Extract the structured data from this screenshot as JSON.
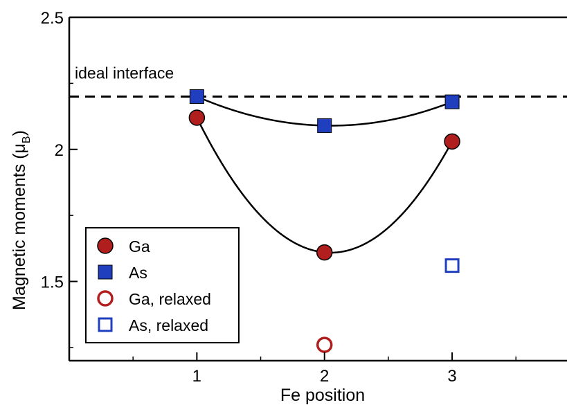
{
  "chart_data": {
    "type": "scatter",
    "xlabel": "Fe position",
    "ylabel": "Magnetic moments (μB)",
    "ylabel_main": "Magnetic moments (μ",
    "ylabel_sub": "B",
    "ylabel_close": ")",
    "xlim": [
      0.0,
      3.9
    ],
    "ylim": [
      1.2,
      2.5
    ],
    "x_ticks": [
      1,
      2,
      3
    ],
    "x_tick_labels": [
      "1",
      "2",
      "3"
    ],
    "y_ticks": [
      1.5,
      2.0,
      2.5
    ],
    "y_tick_labels": [
      "1.5",
      "2",
      "2.5"
    ],
    "grid": false,
    "legend_position": "bottom-left",
    "reference_line": {
      "y": 2.2,
      "label": "ideal interface",
      "style": "dashed"
    },
    "series": [
      {
        "name": "Ga",
        "marker": "circle",
        "filled": true,
        "color": "#b01e1e",
        "x": [
          1,
          2,
          3
        ],
        "y": [
          2.12,
          1.61,
          2.03
        ],
        "fit_curve": true
      },
      {
        "name": "As",
        "marker": "square",
        "filled": true,
        "color": "#1f3fbf",
        "x": [
          1,
          2,
          3
        ],
        "y": [
          2.2,
          2.09,
          2.18
        ],
        "fit_curve": true
      },
      {
        "name": "Ga, relaxed",
        "marker": "circle",
        "filled": false,
        "color": "#b01e1e",
        "x": [
          2
        ],
        "y": [
          1.26
        ],
        "fit_curve": false
      },
      {
        "name": "As, relaxed",
        "marker": "square",
        "filled": false,
        "color": "#1f3fbf",
        "x": [
          3
        ],
        "y": [
          1.56
        ],
        "fit_curve": false
      }
    ]
  }
}
